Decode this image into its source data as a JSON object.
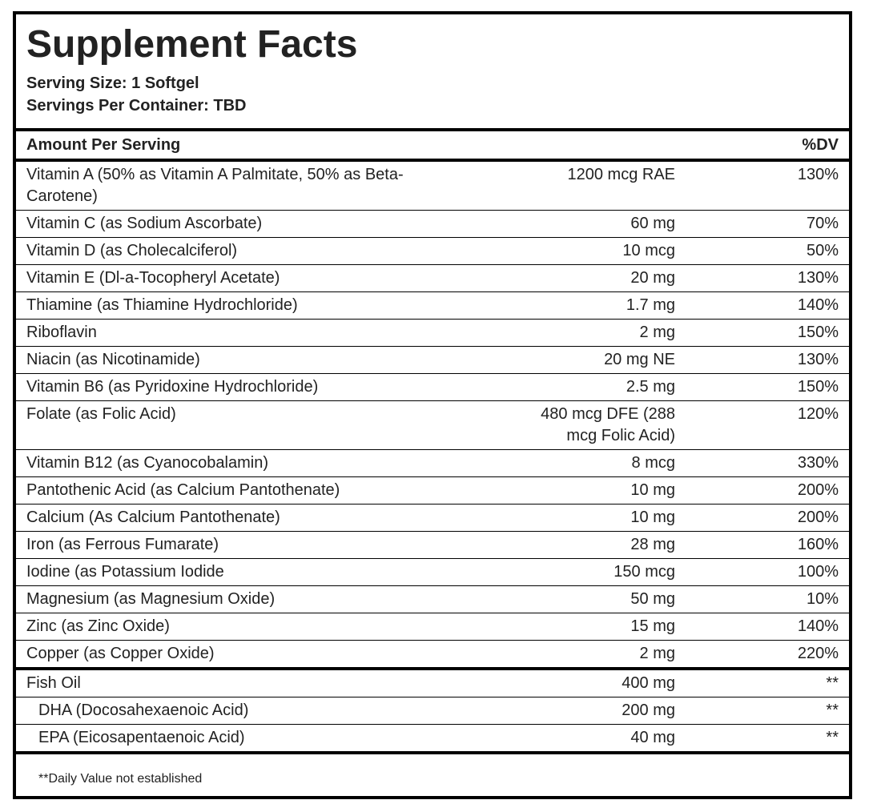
{
  "header": {
    "title": "Supplement Facts",
    "serving_size": "Serving Size: 1 Softgel",
    "servings_per_container": "Servings Per Container: TBD"
  },
  "table": {
    "column_header": {
      "amount_per_serving": "Amount Per Serving",
      "dv": "%DV"
    },
    "rows": [
      {
        "name": "Vitamin A (50% as Vitamin A Palmitate, 50% as Beta-Carotene)",
        "amount": "1200 mcg RAE",
        "dv": "130%"
      },
      {
        "name": "Vitamin C (as Sodium Ascorbate)",
        "amount": "60 mg",
        "dv": "70%"
      },
      {
        "name": "Vitamin D (as Cholecalciferol)",
        "amount": "10 mcg",
        "dv": "50%"
      },
      {
        "name": "Vitamin E (Dl-a-Tocopheryl Acetate)",
        "amount": "20 mg",
        "dv": "130%"
      },
      {
        "name": "Thiamine (as Thiamine Hydrochloride)",
        "amount": "1.7 mg",
        "dv": "140%"
      },
      {
        "name": "Riboflavin",
        "amount": "2 mg",
        "dv": "150%"
      },
      {
        "name": "Niacin (as Nicotinamide)",
        "amount": "20 mg NE",
        "dv": "130%"
      },
      {
        "name": "Vitamin B6 (as Pyridoxine Hydrochloride)",
        "amount": "2.5 mg",
        "dv": "150%"
      },
      {
        "name": "Folate (as Folic Acid)",
        "amount": "480 mcg DFE (288 mcg Folic Acid)",
        "dv": "120%"
      },
      {
        "name": "Vitamin B12 (as Cyanocobalamin)",
        "amount": "8 mcg",
        "dv": "330%"
      },
      {
        "name": "Pantothenic Acid (as Calcium Pantothenate)",
        "amount": "10 mg",
        "dv": "200%"
      },
      {
        "name": "Calcium (As Calcium Pantothenate)",
        "amount": "10 mg",
        "dv": "200%"
      },
      {
        "name": "Iron (as Ferrous Fumarate)",
        "amount": "28 mg",
        "dv": "160%"
      },
      {
        "name": "Iodine (as Potassium Iodide",
        "amount": "150 mcg",
        "dv": "100%"
      },
      {
        "name": "Magnesium (as Magnesium Oxide)",
        "amount": "50 mg",
        "dv": "10%"
      },
      {
        "name": "Zinc (as Zinc Oxide)",
        "amount": "15 mg",
        "dv": "140%"
      },
      {
        "name": "Copper (as Copper Oxide)",
        "amount": "2 mg",
        "dv": "220%"
      }
    ],
    "fish_oil": {
      "name": "Fish Oil",
      "amount": "400 mg",
      "dv": "**"
    },
    "fish_oil_components": [
      {
        "name": "DHA (Docosahexaenoic Acid)",
        "amount": "200 mg",
        "dv": "**"
      },
      {
        "name": "EPA (Eicosapentaenoic Acid)",
        "amount": "40 mg",
        "dv": "**"
      }
    ]
  },
  "footnote": "**Daily Value not established"
}
